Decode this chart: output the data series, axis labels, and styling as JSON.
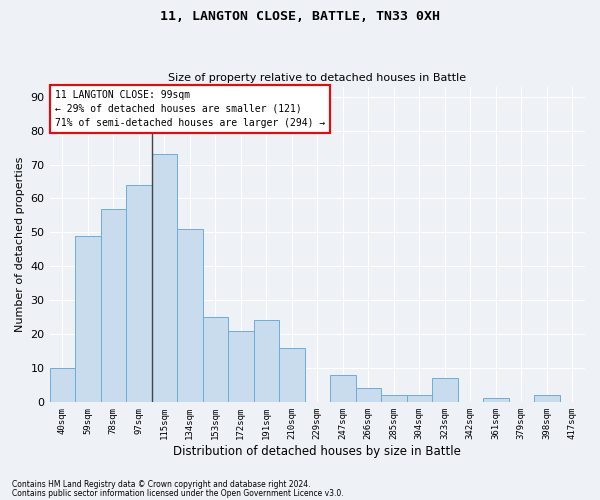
{
  "title": "11, LANGTON CLOSE, BATTLE, TN33 0XH",
  "subtitle": "Size of property relative to detached houses in Battle",
  "xlabel": "Distribution of detached houses by size in Battle",
  "ylabel": "Number of detached properties",
  "bar_color": "#c8dcee",
  "bar_edge_color": "#6aaed6",
  "background_color": "#eef2f7",
  "annotation_lines": [
    "11 LANGTON CLOSE: 99sqm",
    "← 29% of detached houses are smaller (121)",
    "71% of semi-detached houses are larger (294) →"
  ],
  "x_labels": [
    "40sqm",
    "59sqm",
    "78sqm",
    "97sqm",
    "115sqm",
    "134sqm",
    "153sqm",
    "172sqm",
    "191sqm",
    "210sqm",
    "229sqm",
    "247sqm",
    "266sqm",
    "285sqm",
    "304sqm",
    "323sqm",
    "342sqm",
    "361sqm",
    "379sqm",
    "398sqm",
    "417sqm"
  ],
  "bar_values": [
    10,
    49,
    57,
    64,
    73,
    51,
    25,
    21,
    24,
    16,
    0,
    8,
    4,
    2,
    2,
    7,
    0,
    1,
    0,
    2,
    0
  ],
  "ylim": [
    0,
    93
  ],
  "yticks": [
    0,
    10,
    20,
    30,
    40,
    50,
    60,
    70,
    80,
    90
  ],
  "footnote1": "Contains HM Land Registry data © Crown copyright and database right 2024.",
  "footnote2": "Contains public sector information licensed under the Open Government Licence v3.0."
}
